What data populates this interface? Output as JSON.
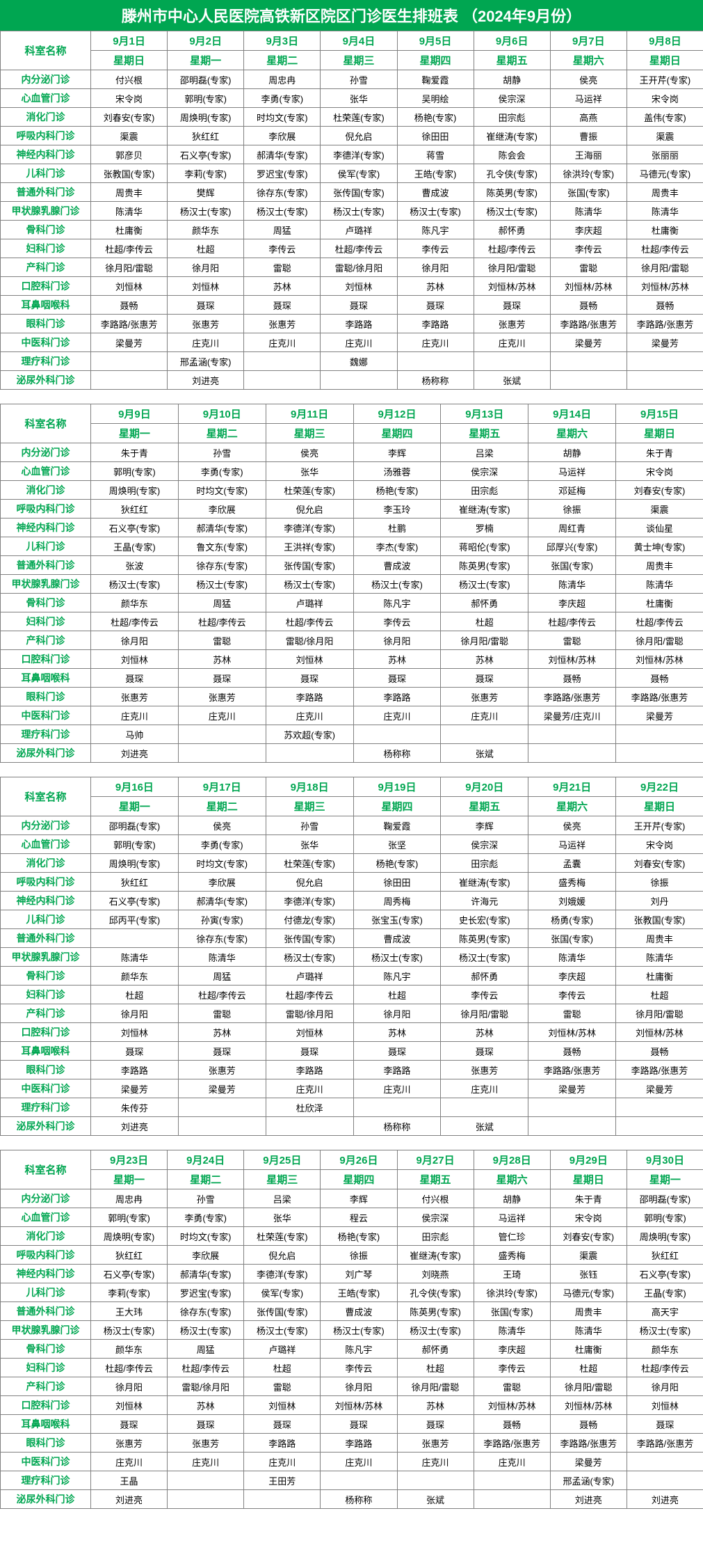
{
  "title": "滕州市中心人民医院高铁新区院区门诊医生排班表 （2024年9月份）",
  "deptLabel": "科室名称",
  "weekday": [
    "星期日",
    "星期一",
    "星期二",
    "星期三",
    "星期四",
    "星期五",
    "星期六"
  ],
  "depts": [
    "内分泌门诊",
    "心血管门诊",
    "消化门诊",
    "呼吸内科门诊",
    "神经内科门诊",
    "儿科门诊",
    "普通外科门诊",
    "甲状腺乳腺门诊",
    "骨科门诊",
    "妇科门诊",
    "产科门诊",
    "口腔科门诊",
    "耳鼻咽喉科",
    "眼科门诊",
    "中医科门诊",
    "理疗科门诊",
    "泌尿外科门诊"
  ],
  "blocks": [
    {
      "dates": [
        "9月1日",
        "9月2日",
        "9月3日",
        "9月4日",
        "9月5日",
        "9月6日",
        "9月7日",
        "9月8日"
      ],
      "dows": [
        "星期日",
        "星期一",
        "星期二",
        "星期三",
        "星期四",
        "星期五",
        "星期六",
        "星期日"
      ],
      "rows": [
        [
          "付兴根",
          "邵明磊(专家)",
          "周忠冉",
          "孙雪",
          "鞠爱霞",
          "胡静",
          "侯亮",
          "王开芹(专家)"
        ],
        [
          "宋令岗",
          "郭明(专家)",
          "李勇(专家)",
          "张华",
          "吴明绘",
          "侯宗深",
          "马运祥",
          "宋令岗"
        ],
        [
          "刘春安(专家)",
          "周焕明(专家)",
          "时均文(专家)",
          "杜荣莲(专家)",
          "杨艳(专家)",
          "田宗彪",
          "高燕",
          "盖伟(专家)"
        ],
        [
          "渠震",
          "狄红红",
          "李欣展",
          "倪允启",
          "徐田田",
          "崔继涛(专家)",
          "曹振",
          "渠震"
        ],
        [
          "郭彦贝",
          "石义亭(专家)",
          "郝清华(专家)",
          "李德洋(专家)",
          "蒋雪",
          "陈会会",
          "王海丽",
          "张丽丽"
        ],
        [
          "张教国(专家)",
          "李莉(专家)",
          "罗迟宝(专家)",
          "侯军(专家)",
          "王皓(专家)",
          "孔令侠(专家)",
          "徐洪玲(专家)",
          "马德元(专家)"
        ],
        [
          "周贵丰",
          "樊辉",
          "徐存东(专家)",
          "张传国(专家)",
          "曹成波",
          "陈英男(专家)",
          "张国(专家)",
          "周贵丰"
        ],
        [
          "陈清华",
          "杨汉士(专家)",
          "杨汉士(专家)",
          "杨汉士(专家)",
          "杨汉士(专家)",
          "杨汉士(专家)",
          "陈清华",
          "陈清华"
        ],
        [
          "杜庸衡",
          "颜华东",
          "周猛",
          "卢璐祥",
          "陈凡宇",
          "郝怀勇",
          "李庆超",
          "杜庸衡"
        ],
        [
          "杜超/李传云",
          "杜超",
          "李传云",
          "杜超/李传云",
          "李传云",
          "杜超/李传云",
          "李传云",
          "杜超/李传云"
        ],
        [
          "徐月阳/雷聪",
          "徐月阳",
          "雷聪",
          "雷聪/徐月阳",
          "徐月阳",
          "徐月阳/雷聪",
          "雷聪",
          "徐月阳/雷聪"
        ],
        [
          "刘恒林",
          "刘恒林",
          "苏林",
          "刘恒林",
          "苏林",
          "刘恒林/苏林",
          "刘恒林/苏林",
          "刘恒林/苏林"
        ],
        [
          "聂畅",
          "聂琛",
          "聂琛",
          "聂琛",
          "聂琛",
          "聂琛",
          "聂畅",
          "聂畅"
        ],
        [
          "李路路/张惠芳",
          "张惠芳",
          "张惠芳",
          "李路路",
          "李路路",
          "张惠芳",
          "李路路/张惠芳",
          "李路路/张惠芳"
        ],
        [
          "梁曼芳",
          "庄克川",
          "庄克川",
          "庄克川",
          "庄克川",
          "庄克川",
          "梁曼芳",
          "梁曼芳"
        ],
        [
          "",
          "邢孟涵(专家)",
          "",
          "魏娜",
          "",
          "",
          "",
          ""
        ],
        [
          "",
          "刘进亮",
          "",
          "",
          "杨称称",
          "张斌",
          "",
          ""
        ]
      ]
    },
    {
      "dates": [
        "9月9日",
        "9月10日",
        "9月11日",
        "9月12日",
        "9月13日",
        "9月14日",
        "9月15日"
      ],
      "dows": [
        "星期一",
        "星期二",
        "星期三",
        "星期四",
        "星期五",
        "星期六",
        "星期日"
      ],
      "rows": [
        [
          "朱于青",
          "孙雪",
          "侯亮",
          "李辉",
          "吕梁",
          "胡静",
          "朱于青"
        ],
        [
          "郭明(专家)",
          "李勇(专家)",
          "张华",
          "汤雅蓉",
          "侯宗深",
          "马运祥",
          "宋令岗"
        ],
        [
          "周焕明(专家)",
          "时均文(专家)",
          "杜荣莲(专家)",
          "杨艳(专家)",
          "田宗彪",
          "邓延梅",
          "刘春安(专家)"
        ],
        [
          "狄红红",
          "李欣展",
          "倪允启",
          "李玉玲",
          "崔继涛(专家)",
          "徐振",
          "渠震"
        ],
        [
          "石义亭(专家)",
          "郝清华(专家)",
          "李德洋(专家)",
          "杜鹏",
          "罗楠",
          "周红青",
          "谈仙星"
        ],
        [
          "王晶(专家)",
          "鲁文东(专家)",
          "王洪祥(专家)",
          "李杰(专家)",
          "蒋昭伦(专家)",
          "邱厚兴(专家)",
          "黄士坤(专家)"
        ],
        [
          "张波",
          "徐存东(专家)",
          "张传国(专家)",
          "曹成波",
          "陈英男(专家)",
          "张国(专家)",
          "周贵丰"
        ],
        [
          "杨汉士(专家)",
          "杨汉士(专家)",
          "杨汉士(专家)",
          "杨汉士(专家)",
          "杨汉士(专家)",
          "陈清华",
          "陈清华"
        ],
        [
          "颜华东",
          "周猛",
          "卢璐祥",
          "陈凡宇",
          "郝怀勇",
          "李庆超",
          "杜庸衡"
        ],
        [
          "杜超/李传云",
          "杜超/李传云",
          "杜超/李传云",
          "李传云",
          "杜超",
          "杜超/李传云",
          "杜超/李传云"
        ],
        [
          "徐月阳",
          "雷聪",
          "雷聪/徐月阳",
          "徐月阳",
          "徐月阳/雷聪",
          "雷聪",
          "徐月阳/雷聪"
        ],
        [
          "刘恒林",
          "苏林",
          "刘恒林",
          "苏林",
          "苏林",
          "刘恒林/苏林",
          "刘恒林/苏林"
        ],
        [
          "聂琛",
          "聂琛",
          "聂琛",
          "聂琛",
          "聂琛",
          "聂畅",
          "聂畅"
        ],
        [
          "张惠芳",
          "张惠芳",
          "李路路",
          "李路路",
          "张惠芳",
          "李路路/张惠芳",
          "李路路/张惠芳"
        ],
        [
          "庄克川",
          "庄克川",
          "庄克川",
          "庄克川",
          "庄克川",
          "梁曼芳/庄克川",
          "梁曼芳"
        ],
        [
          "马帅",
          "",
          "苏欢超(专家)",
          "",
          "",
          "",
          ""
        ],
        [
          "刘进亮",
          "",
          "",
          "杨称称",
          "张斌",
          "",
          ""
        ]
      ]
    },
    {
      "dates": [
        "9月16日",
        "9月17日",
        "9月18日",
        "9月19日",
        "9月20日",
        "9月21日",
        "9月22日"
      ],
      "dows": [
        "星期一",
        "星期二",
        "星期三",
        "星期四",
        "星期五",
        "星期六",
        "星期日"
      ],
      "rows": [
        [
          "邵明磊(专家)",
          "侯亮",
          "孙雪",
          "鞠爱霞",
          "李辉",
          "侯亮",
          "王开芹(专家)"
        ],
        [
          "郭明(专家)",
          "李勇(专家)",
          "张华",
          "张坚",
          "侯宗深",
          "马运祥",
          "宋令岗"
        ],
        [
          "周焕明(专家)",
          "时均文(专家)",
          "杜荣莲(专家)",
          "杨艳(专家)",
          "田宗彪",
          "孟囊",
          "刘春安(专家)"
        ],
        [
          "狄红红",
          "李欣展",
          "倪允启",
          "徐田田",
          "崔继涛(专家)",
          "盛秀梅",
          "徐振"
        ],
        [
          "石义亭(专家)",
          "郝清华(专家)",
          "李德洋(专家)",
          "周秀梅",
          "许海元",
          "刘娥媛",
          "刘丹"
        ],
        [
          "邱丙平(专家)",
          "孙寅(专家)",
          "付德龙(专家)",
          "张宝玉(专家)",
          "史长宏(专家)",
          "杨勇(专家)",
          "张教国(专家)"
        ],
        [
          "",
          "徐存东(专家)",
          "张传国(专家)",
          "曹成波",
          "陈英男(专家)",
          "张国(专家)",
          "周贵丰"
        ],
        [
          "陈清华",
          "陈清华",
          "杨汉士(专家)",
          "杨汉士(专家)",
          "杨汉士(专家)",
          "陈清华",
          "陈清华"
        ],
        [
          "颜华东",
          "周猛",
          "卢璐祥",
          "陈凡宇",
          "郝怀勇",
          "李庆超",
          "杜庸衡"
        ],
        [
          "杜超",
          "杜超/李传云",
          "杜超/李传云",
          "杜超",
          "李传云",
          "李传云",
          "杜超"
        ],
        [
          "徐月阳",
          "雷聪",
          "雷聪/徐月阳",
          "徐月阳",
          "徐月阳/雷聪",
          "雷聪",
          "徐月阳/雷聪"
        ],
        [
          "刘恒林",
          "苏林",
          "刘恒林",
          "苏林",
          "苏林",
          "刘恒林/苏林",
          "刘恒林/苏林"
        ],
        [
          "聂琛",
          "聂琛",
          "聂琛",
          "聂琛",
          "聂琛",
          "聂畅",
          "聂畅"
        ],
        [
          "李路路",
          "张惠芳",
          "李路路",
          "李路路",
          "张惠芳",
          "李路路/张惠芳",
          "李路路/张惠芳"
        ],
        [
          "梁曼芳",
          "梁曼芳",
          "庄克川",
          "庄克川",
          "庄克川",
          "梁曼芳",
          "梁曼芳"
        ],
        [
          "朱传芬",
          "",
          "杜欣泽",
          "",
          "",
          "",
          ""
        ],
        [
          "刘进亮",
          "",
          "",
          "杨称称",
          "张斌",
          "",
          ""
        ]
      ]
    },
    {
      "dates": [
        "9月23日",
        "9月24日",
        "9月25日",
        "9月26日",
        "9月27日",
        "9月28日",
        "9月29日",
        "9月30日"
      ],
      "dows": [
        "星期一",
        "星期二",
        "星期三",
        "星期四",
        "星期五",
        "星期六",
        "星期日",
        "星期一"
      ],
      "rows": [
        [
          "周忠冉",
          "孙雪",
          "吕梁",
          "李辉",
          "付兴根",
          "胡静",
          "朱于青",
          "邵明磊(专家)"
        ],
        [
          "郭明(专家)",
          "李勇(专家)",
          "张华",
          "程云",
          "侯宗深",
          "马运祥",
          "宋令岗",
          "郭明(专家)"
        ],
        [
          "周焕明(专家)",
          "时均文(专家)",
          "杜荣莲(专家)",
          "杨艳(专家)",
          "田宗彪",
          "管仁珍",
          "刘春安(专家)",
          "周焕明(专家)"
        ],
        [
          "狄红红",
          "李欣展",
          "倪允启",
          "徐振",
          "崔继涛(专家)",
          "盛秀梅",
          "渠震",
          "狄红红"
        ],
        [
          "石义亭(专家)",
          "郝清华(专家)",
          "李德洋(专家)",
          "刘广琴",
          "刘晓燕",
          "王琦",
          "张钰",
          "石义亭(专家)"
        ],
        [
          "李莉(专家)",
          "罗迟宝(专家)",
          "侯军(专家)",
          "王皓(专家)",
          "孔令侠(专家)",
          "徐洪玲(专家)",
          "马德元(专家)",
          "王晶(专家)"
        ],
        [
          "王大玮",
          "徐存东(专家)",
          "张传国(专家)",
          "曹成波",
          "陈英男(专家)",
          "张国(专家)",
          "周贵丰",
          "高天宇"
        ],
        [
          "杨汉士(专家)",
          "杨汉士(专家)",
          "杨汉士(专家)",
          "杨汉士(专家)",
          "杨汉士(专家)",
          "陈清华",
          "陈清华",
          "杨汉士(专家)"
        ],
        [
          "颜华东",
          "周猛",
          "卢璐祥",
          "陈凡宇",
          "郝怀勇",
          "李庆超",
          "杜庸衡",
          "颜华东"
        ],
        [
          "杜超/李传云",
          "杜超/李传云",
          "杜超",
          "李传云",
          "杜超",
          "李传云",
          "杜超",
          "杜超/李传云"
        ],
        [
          "徐月阳",
          "雷聪/徐月阳",
          "雷聪",
          "徐月阳",
          "徐月阳/雷聪",
          "雷聪",
          "徐月阳/雷聪",
          "徐月阳"
        ],
        [
          "刘恒林",
          "苏林",
          "刘恒林",
          "刘恒林/苏林",
          "苏林",
          "刘恒林/苏林",
          "刘恒林/苏林",
          "刘恒林"
        ],
        [
          "聂琛",
          "聂琛",
          "聂琛",
          "聂琛",
          "聂琛",
          "聂畅",
          "聂畅",
          "聂琛"
        ],
        [
          "张惠芳",
          "张惠芳",
          "李路路",
          "李路路",
          "张惠芳",
          "李路路/张惠芳",
          "李路路/张惠芳",
          "李路路/张惠芳"
        ],
        [
          "庄克川",
          "庄克川",
          "庄克川",
          "庄克川",
          "庄克川",
          "庄克川",
          "梁曼芳",
          ""
        ],
        [
          "王晶",
          "",
          "王田芳",
          "",
          "",
          "",
          "邢孟涵(专家)",
          ""
        ],
        [
          "刘进亮",
          "",
          "",
          "杨称称",
          "张斌",
          "",
          "刘进亮",
          "刘进亮"
        ]
      ]
    }
  ],
  "colors": {
    "brand": "#00a651",
    "border": "#808080",
    "text": "#000000",
    "bg": "#ffffff"
  }
}
